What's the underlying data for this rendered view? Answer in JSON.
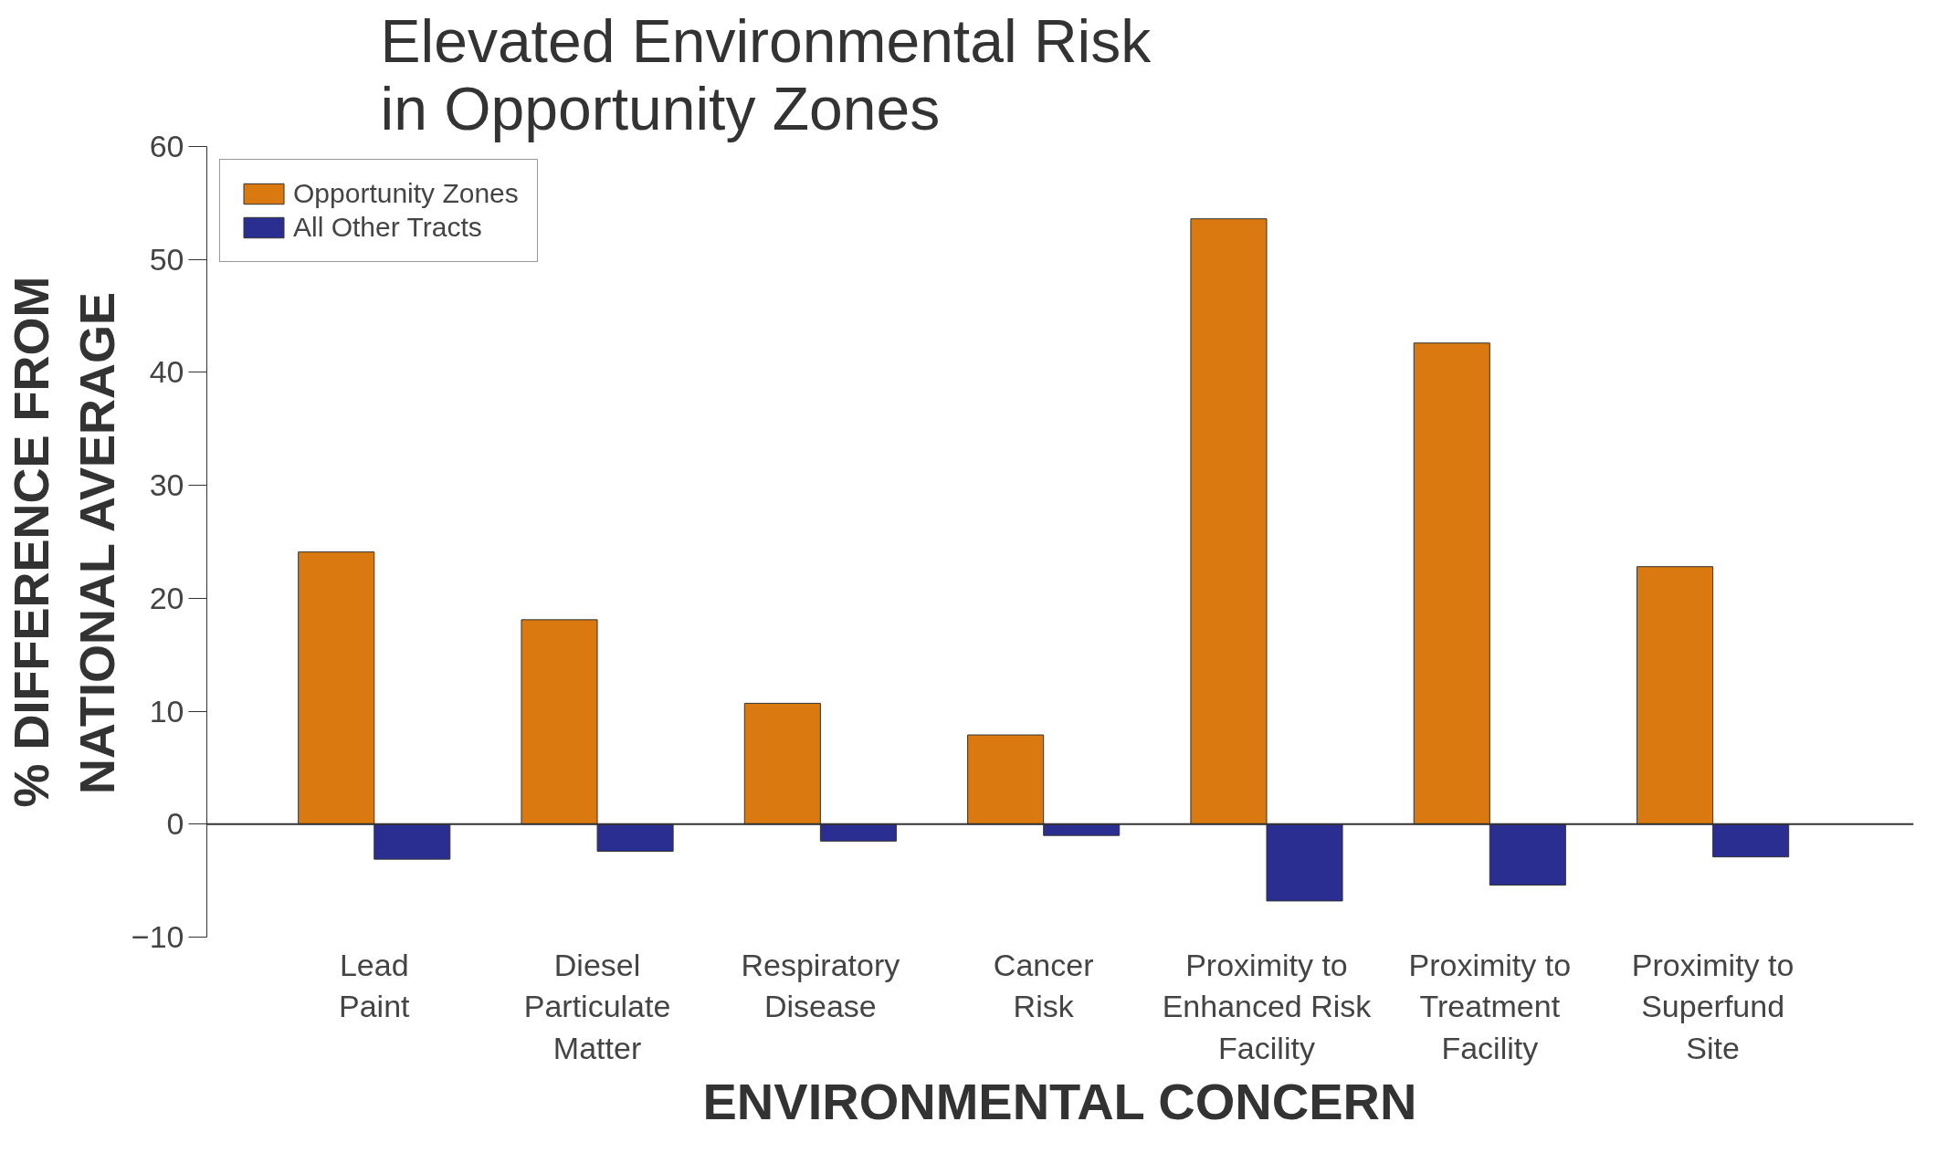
{
  "chart_data": {
    "type": "bar",
    "title": "Elevated Environmental Risk\nin Opportunity Zones",
    "xlabel": "ENVIRONMENTAL CONCERN",
    "ylabel": "% DIFFERENCE FROM\nNATIONAL AVERAGE",
    "categories": [
      "Lead\nPaint",
      "Diesel\nParticulate\nMatter",
      "Respiratory\nDisease",
      "Cancer\nRisk",
      "Proximity to\nEnhanced Risk\nFacility",
      "Proximity to\nTreatment\nFacility",
      "Proximity to\nSuperfund\nSite"
    ],
    "series": [
      {
        "name": "Opportunity Zones",
        "color": "#d9790f",
        "values": [
          24.1,
          18.1,
          10.7,
          7.9,
          53.6,
          42.6,
          22.8
        ]
      },
      {
        "name": "All Other Tracts",
        "color": "#2b2e91",
        "values": [
          -3.1,
          -2.4,
          -1.5,
          -1.0,
          -6.8,
          -5.4,
          -2.9
        ]
      }
    ],
    "ylim": [
      -10,
      60
    ],
    "yticks": [
      {
        "value": -10,
        "label": "−10"
      },
      0,
      10,
      20,
      30,
      40,
      50,
      60
    ],
    "legend": "top left"
  }
}
